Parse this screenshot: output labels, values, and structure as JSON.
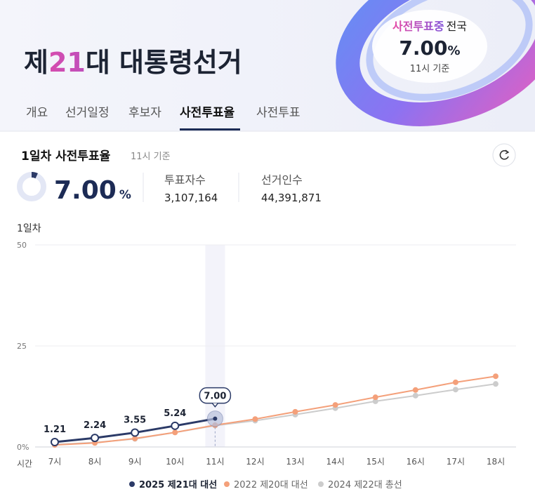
{
  "header": {
    "title_parts": [
      "제",
      "21",
      "대 대통령선거"
    ],
    "badge_status": "사전투표중",
    "badge_region": "전국"
  },
  "tabs": [
    "개요",
    "선거일정",
    "후보자",
    "사전투표율",
    "사전투표"
  ],
  "active_tab": 3,
  "summary": {
    "title": "1일차 사전투표율",
    "time": "11시 기준",
    "rate": {
      "value": 7,
      "label": "7.00"
    },
    "unit": "%",
    "stats": [
      {
        "label": "투표자수",
        "value": "3,107,164"
      },
      {
        "label": "선거인수",
        "value": "44,391,871"
      }
    ]
  },
  "chart_data": {
    "type": "line",
    "y_label": "1일차",
    "x_label": "시간",
    "categories": [
      "7시",
      "8시",
      "9시",
      "10시",
      "11시",
      "12시",
      "13시",
      "14시",
      "15시",
      "16시",
      "17시",
      "18시"
    ],
    "series": [
      {
        "name": "2025 제21대 대선",
        "color": "#2b3a67",
        "values": [
          1.21,
          2.24,
          3.55,
          5.24,
          7,
          null,
          null,
          null,
          null,
          null,
          null,
          null
        ],
        "value_labels": [
          "1.21",
          "2.24",
          "3.55",
          "5.24",
          "7.00",
          null,
          null,
          null,
          null,
          null,
          null,
          null
        ]
      },
      {
        "name": "2022 제20대 대선",
        "color": "#f4a07a",
        "values": [
          0.5,
          1.0,
          2.1,
          3.6,
          5.4,
          6.9,
          8.7,
          10.4,
          12.3,
          14.1,
          16.0,
          17.5
        ]
      },
      {
        "name": "2024 제22대 총선",
        "color": "#cccccc",
        "values": [
          0.6,
          1.1,
          2.0,
          3.6,
          5.3,
          6.5,
          8.0,
          9.6,
          11.3,
          12.7,
          14.2,
          15.6
        ]
      }
    ],
    "ylim": [
      0,
      50
    ],
    "yticks": [
      {
        "value": 0,
        "label": "0%"
      },
      25,
      50
    ],
    "grid": true,
    "highlight": "11시",
    "legend": "bottom"
  }
}
